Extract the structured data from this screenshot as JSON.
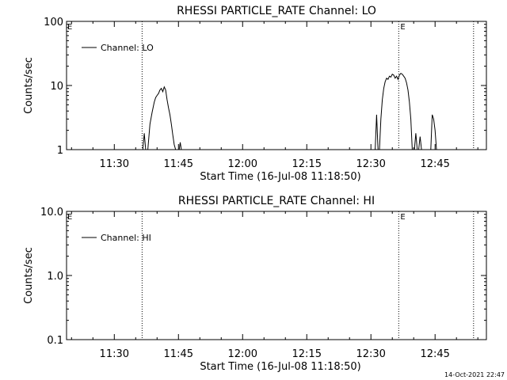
{
  "footer_timestamp": "14-Oct-2021 22:47",
  "chart_data": [
    {
      "type": "line",
      "title": "RHESSI PARTICLE_RATE Channel: LO",
      "xlabel": "Start Time (16-Jul-08 11:18:50)",
      "ylabel": "Counts/sec",
      "yscale": "log",
      "ylim": [
        1,
        100
      ],
      "yticks": [
        {
          "v": 1,
          "label": "1"
        },
        {
          "v": 10,
          "label": "10"
        },
        {
          "v": 100,
          "label": "100"
        }
      ],
      "xlim": [
        "11:18:50",
        "12:57:00"
      ],
      "xticks": [
        "11:30",
        "11:45",
        "12:00",
        "12:15",
        "12:30",
        "12:45"
      ],
      "eclipse_markers": [
        "11:36:30",
        "12:36:30",
        "12:54:00"
      ],
      "eclipse_label": "E",
      "legend": {
        "label": "Channel: LO",
        "position": "top-left"
      },
      "series": [
        {
          "name": "Channel: LO",
          "points": [
            [
              "11:36:40",
              1.0
            ],
            [
              "11:37:00",
              1.8
            ],
            [
              "11:37:20",
              1.0
            ],
            [
              "11:37:50",
              1.0
            ],
            [
              "11:38:20",
              2.5
            ],
            [
              "11:38:50",
              3.8
            ],
            [
              "11:39:20",
              5.5
            ],
            [
              "11:39:40",
              6.5
            ],
            [
              "11:40:00",
              7.0
            ],
            [
              "11:40:20",
              7.5
            ],
            [
              "11:40:40",
              8.5
            ],
            [
              "11:41:00",
              9.0
            ],
            [
              "11:41:20",
              8.0
            ],
            [
              "11:41:40",
              9.5
            ],
            [
              "11:42:00",
              8.5
            ],
            [
              "11:42:20",
              6.0
            ],
            [
              "11:42:40",
              4.5
            ],
            [
              "11:43:00",
              3.5
            ],
            [
              "11:43:20",
              2.5
            ],
            [
              "11:43:40",
              1.7
            ],
            [
              "11:44:00",
              1.2
            ],
            [
              "11:44:20",
              1.0
            ],
            [
              "11:45:10",
              1.0
            ],
            [
              "11:45:25",
              1.3
            ],
            [
              "11:45:40",
              1.0
            ],
            null,
            [
              "12:31:00",
              1.0
            ],
            [
              "12:31:20",
              3.5
            ],
            [
              "12:31:40",
              1.0
            ],
            [
              "12:32:00",
              1.0
            ],
            [
              "12:32:20",
              3.0
            ],
            [
              "12:32:40",
              6.0
            ],
            [
              "12:33:00",
              9.0
            ],
            [
              "12:33:20",
              11.5
            ],
            [
              "12:33:40",
              13.0
            ],
            [
              "12:34:00",
              12.5
            ],
            [
              "12:34:20",
              14.0
            ],
            [
              "12:34:40",
              13.5
            ],
            [
              "12:35:00",
              15.0
            ],
            [
              "12:35:20",
              14.5
            ],
            [
              "12:35:40",
              13.0
            ],
            [
              "12:36:00",
              14.0
            ],
            [
              "12:36:20",
              12.5
            ],
            [
              "12:36:40",
              14.5
            ],
            [
              "12:37:00",
              15.5
            ],
            [
              "12:37:20",
              15.0
            ],
            [
              "12:37:40",
              14.0
            ],
            [
              "12:38:00",
              13.0
            ],
            [
              "12:38:20",
              11.0
            ],
            [
              "12:38:40",
              8.5
            ],
            [
              "12:39:00",
              5.5
            ],
            [
              "12:39:20",
              3.0
            ],
            [
              "12:39:40",
              1.0
            ],
            [
              "12:40:10",
              1.0
            ],
            [
              "12:40:30",
              1.8
            ],
            [
              "12:40:50",
              1.0
            ],
            [
              "12:41:10",
              1.0
            ],
            [
              "12:41:30",
              1.6
            ],
            [
              "12:41:50",
              1.0
            ],
            [
              "12:44:00",
              1.0
            ],
            [
              "12:44:20",
              3.5
            ],
            [
              "12:44:40",
              3.0
            ],
            [
              "12:45:00",
              2.0
            ],
            [
              "12:45:20",
              1.0
            ]
          ]
        }
      ]
    },
    {
      "type": "line",
      "title": "RHESSI PARTICLE_RATE Channel: HI",
      "xlabel": "Start Time (16-Jul-08 11:18:50)",
      "ylabel": "Counts/sec",
      "yscale": "log",
      "ylim": [
        0.1,
        10
      ],
      "yticks": [
        {
          "v": 0.1,
          "label": "0.1"
        },
        {
          "v": 1,
          "label": "1.0"
        },
        {
          "v": 10,
          "label": "10.0"
        }
      ],
      "xlim": [
        "11:18:50",
        "12:57:00"
      ],
      "xticks": [
        "11:30",
        "11:45",
        "12:00",
        "12:15",
        "12:30",
        "12:45"
      ],
      "eclipse_markers": [
        "11:36:30",
        "12:36:30",
        "12:54:00"
      ],
      "eclipse_label": "E",
      "legend": {
        "label": "Channel: HI",
        "position": "top-left"
      },
      "series": [
        {
          "name": "Channel: HI",
          "points": []
        }
      ]
    }
  ]
}
